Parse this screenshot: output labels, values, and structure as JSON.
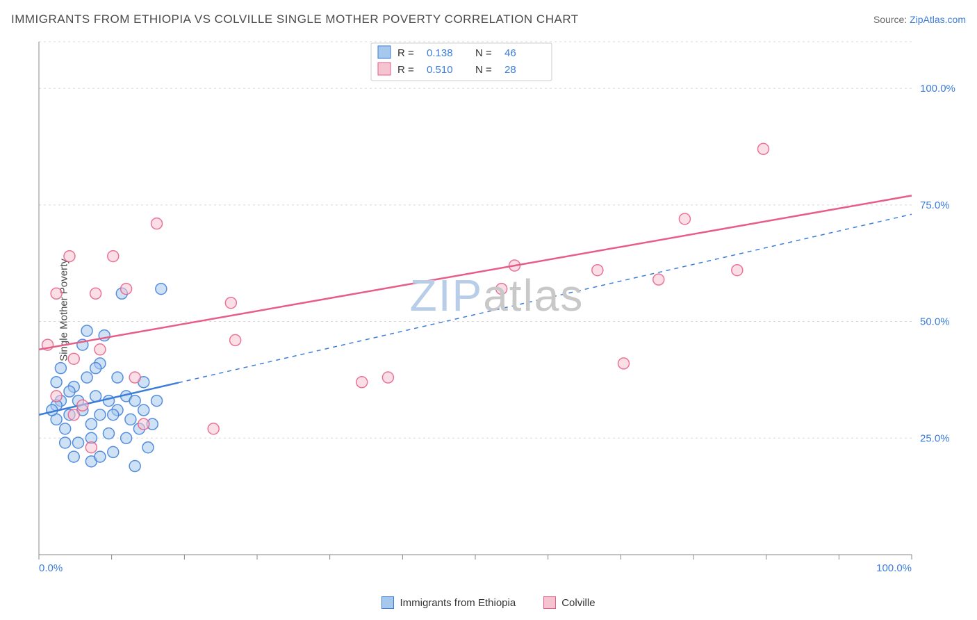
{
  "title": "IMMIGRANTS FROM ETHIOPIA VS COLVILLE SINGLE MOTHER POVERTY CORRELATION CHART",
  "source_prefix": "Source: ",
  "source_name": "ZipAtlas.com",
  "ylabel": "Single Mother Poverty",
  "watermark": "ZIPatlas",
  "chart": {
    "type": "scatter",
    "background_color": "#ffffff",
    "grid_color": "#d8d8d8",
    "axis_color": "#888888",
    "tick_label_color": "#3b7dd8",
    "xlim": [
      0,
      100
    ],
    "ylim": [
      0,
      110
    ],
    "x_ticks": [
      0,
      8.33,
      16.67,
      25,
      33.33,
      41.67,
      50,
      58.33,
      66.67,
      75,
      83.33,
      91.67,
      100
    ],
    "x_tick_labels": {
      "0": "0.0%",
      "100": "100.0%"
    },
    "y_gridlines": [
      25,
      50,
      75,
      100
    ],
    "y_tick_labels": {
      "25": "25.0%",
      "50": "50.0%",
      "75": "75.0%",
      "100": "100.0%"
    },
    "marker_radius": 8,
    "marker_stroke_width": 1.5,
    "trend_line_width": 2.5,
    "series": [
      {
        "name": "Immigrants from Ethiopia",
        "fill_color": "#a6c8ec",
        "stroke_color": "#3b7dd8",
        "fill_opacity": 0.55,
        "r_value": "0.138",
        "n_value": "46",
        "points": [
          [
            2.0,
            29
          ],
          [
            2.5,
            33
          ],
          [
            3.0,
            27
          ],
          [
            3.5,
            30
          ],
          [
            4.0,
            36
          ],
          [
            4.5,
            24
          ],
          [
            5.0,
            31
          ],
          [
            5.0,
            45
          ],
          [
            5.5,
            38
          ],
          [
            6.0,
            20
          ],
          [
            6.0,
            28
          ],
          [
            6.5,
            34
          ],
          [
            7.0,
            30
          ],
          [
            7.0,
            41
          ],
          [
            7.5,
            47
          ],
          [
            8.0,
            26
          ],
          [
            8.0,
            33
          ],
          [
            8.5,
            22
          ],
          [
            9.0,
            31
          ],
          [
            9.0,
            38
          ],
          [
            9.5,
            56
          ],
          [
            10.0,
            25
          ],
          [
            10.0,
            34
          ],
          [
            10.5,
            29
          ],
          [
            11.0,
            19
          ],
          [
            11.0,
            33
          ],
          [
            11.5,
            27
          ],
          [
            12.0,
            31
          ],
          [
            12.0,
            37
          ],
          [
            12.5,
            23
          ],
          [
            13.0,
            28
          ],
          [
            13.5,
            33
          ],
          [
            14.0,
            57
          ],
          [
            4.0,
            21
          ],
          [
            3.0,
            24
          ],
          [
            2.0,
            37
          ],
          [
            2.5,
            40
          ],
          [
            6.0,
            25
          ],
          [
            7.0,
            21
          ],
          [
            8.5,
            30
          ],
          [
            5.5,
            48
          ],
          [
            4.5,
            33
          ],
          [
            2.0,
            32
          ],
          [
            3.5,
            35
          ],
          [
            1.5,
            31
          ],
          [
            6.5,
            40
          ]
        ],
        "trend": {
          "y_at_x0": 30,
          "y_at_x100": 73,
          "solid_until_x": 16
        }
      },
      {
        "name": "Colville",
        "fill_color": "#f5c4d1",
        "stroke_color": "#e85d87",
        "fill_opacity": 0.55,
        "r_value": "0.510",
        "n_value": "28",
        "points": [
          [
            1.0,
            45
          ],
          [
            2.0,
            56
          ],
          [
            3.5,
            64
          ],
          [
            4.0,
            42
          ],
          [
            5.0,
            32
          ],
          [
            6.0,
            23
          ],
          [
            7.0,
            44
          ],
          [
            8.5,
            64
          ],
          [
            10.0,
            57
          ],
          [
            13.5,
            71
          ],
          [
            20.0,
            27
          ],
          [
            22.0,
            54
          ],
          [
            22.5,
            46
          ],
          [
            37.0,
            37
          ],
          [
            40.0,
            38
          ],
          [
            53.0,
            57
          ],
          [
            54.5,
            62
          ],
          [
            64.0,
            61
          ],
          [
            67.0,
            41
          ],
          [
            71.0,
            59
          ],
          [
            74.0,
            72
          ],
          [
            80.0,
            61
          ],
          [
            83.0,
            87
          ],
          [
            2.0,
            34
          ],
          [
            4.0,
            30
          ],
          [
            6.5,
            56
          ],
          [
            11.0,
            38
          ],
          [
            12.0,
            28
          ]
        ],
        "trend": {
          "y_at_x0": 44,
          "y_at_x100": 77,
          "solid_until_x": 100
        }
      }
    ]
  },
  "legend_top": {
    "r_label": "R =",
    "n_label": "N ="
  },
  "legend_bottom": [
    {
      "label": "Immigrants from Ethiopia",
      "fill": "#a6c8ec",
      "stroke": "#3b7dd8"
    },
    {
      "label": "Colville",
      "fill": "#f5c4d1",
      "stroke": "#e85d87"
    }
  ],
  "watermark_colors": {
    "zip": "#b8cde8",
    "atlas": "#c8c8c8"
  }
}
